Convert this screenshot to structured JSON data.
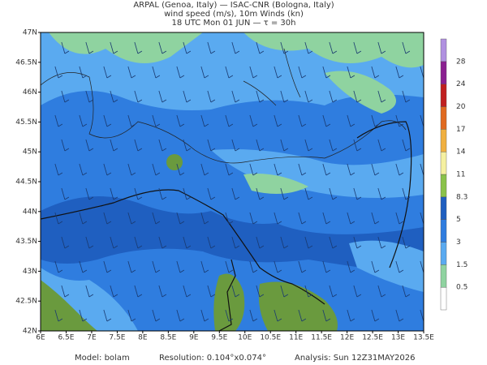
{
  "header": {
    "lines": [
      "ARPAL (Genoa, Italy)  —  ISAC-CNR (Bologna, Italy)",
      "wind speed (m/s), 10m Winds (kn)",
      "18 UTC Mon 01 JUN  —  τ = 30h"
    ]
  },
  "axes": {
    "lat_labels": [
      "47N",
      "46.5N",
      "46N",
      "45.5N",
      "45N",
      "44.5N",
      "44N",
      "43.5N",
      "43N",
      "42.5N",
      "42N"
    ],
    "lon_labels": [
      "6E",
      "6.5E",
      "7E",
      "7.5E",
      "8E",
      "8.5E",
      "9E",
      "9.5E",
      "10E",
      "10.5E",
      "11E",
      "11.5E",
      "12E",
      "12.5E",
      "13E",
      "13.5E"
    ]
  },
  "colorbar": {
    "labels": [
      "0.5",
      "1.5",
      "3",
      "5",
      "8.3",
      "11",
      "14",
      "17",
      "20",
      "24",
      "28"
    ],
    "colors": [
      "#ffffff",
      "#8fd3a0",
      "#5aaaf0",
      "#2f7ddf",
      "#1f5fc0",
      "#8ac24a",
      "#f5f0a0",
      "#f0b040",
      "#e06a20",
      "#c02020",
      "#8a2090",
      "#b090e0"
    ]
  },
  "footer": {
    "model": "Model: bolam",
    "resolution": "Resolution: 0.104°x0.074°",
    "analysis": "Analysis: Sun 12Z31MAY2026"
  }
}
